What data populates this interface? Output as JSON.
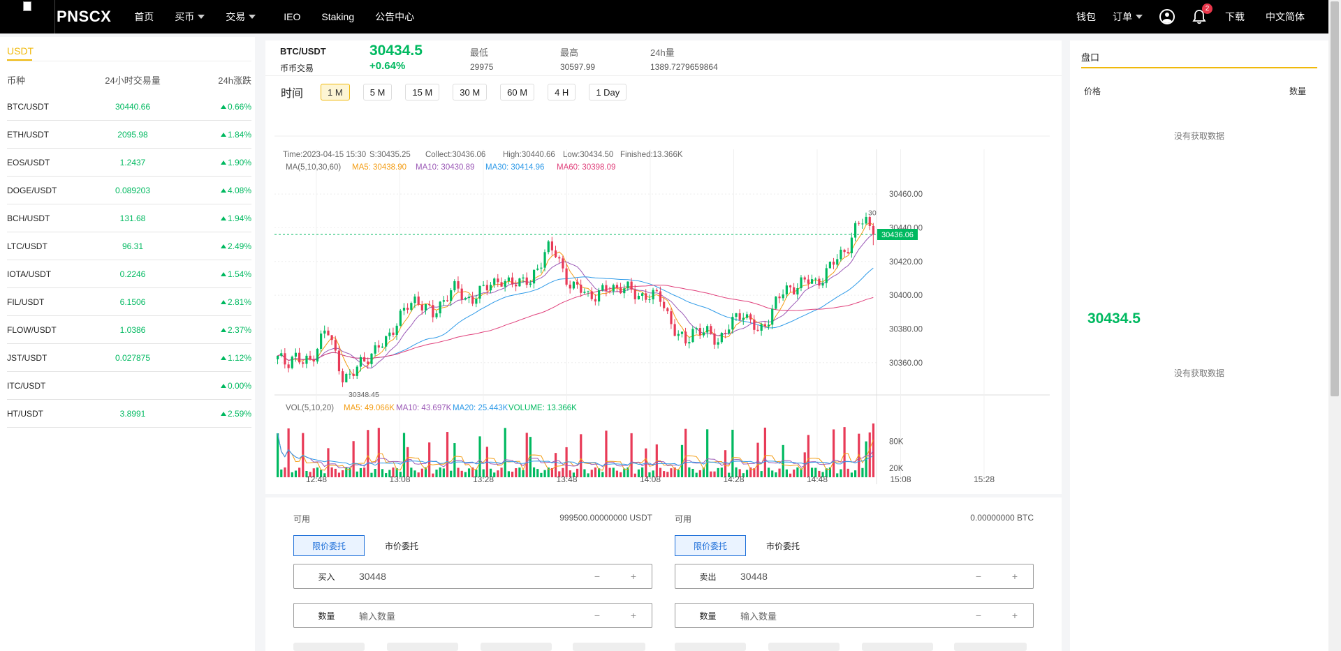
{
  "nav": {
    "brand": "PNSCX",
    "items": [
      {
        "label": "首页",
        "has_caret": false
      },
      {
        "label": "买币",
        "has_caret": true
      },
      {
        "label": "交易",
        "has_caret": true
      },
      {
        "label": "IEO",
        "has_caret": false
      },
      {
        "label": "Staking",
        "has_caret": false
      },
      {
        "label": "公告中心",
        "has_caret": false
      }
    ],
    "wallet": "钱包",
    "orders": "订单",
    "notification_count": "2",
    "download": "下载",
    "language": "中文简体"
  },
  "market": {
    "tab": "USDT",
    "headers": [
      "币种",
      "24小时交易量",
      "24h涨跌"
    ],
    "rows": [
      {
        "symbol": "BTC/USDT",
        "volume": "30440.66",
        "change": "0.66%"
      },
      {
        "symbol": "ETH/USDT",
        "volume": "2095.98",
        "change": "1.84%"
      },
      {
        "symbol": "EOS/USDT",
        "volume": "1.2437",
        "change": "1.90%"
      },
      {
        "symbol": "DOGE/USDT",
        "volume": "0.089203",
        "change": "4.08%"
      },
      {
        "symbol": "BCH/USDT",
        "volume": "131.68",
        "change": "1.94%"
      },
      {
        "symbol": "LTC/USDT",
        "volume": "96.31",
        "change": "2.49%"
      },
      {
        "symbol": "IOTA/USDT",
        "volume": "0.2246",
        "change": "1.54%"
      },
      {
        "symbol": "FIL/USDT",
        "volume": "6.1506",
        "change": "2.81%"
      },
      {
        "symbol": "FLOW/USDT",
        "volume": "1.0386",
        "change": "2.37%"
      },
      {
        "symbol": "JST/USDT",
        "volume": "0.027875",
        "change": "1.12%"
      },
      {
        "symbol": "ITC/USDT",
        "volume": "",
        "change": "0.00%"
      },
      {
        "symbol": "HT/USDT",
        "volume": "3.8991",
        "change": "2.59%"
      }
    ],
    "up_color": "#00b960"
  },
  "ticker": {
    "pair": "BTC/USDT",
    "sub": "币币交易",
    "price": "30434.5",
    "change": "+0.64%",
    "low_label": "最低",
    "low": "29975",
    "high_label": "最高",
    "high": "30597.99",
    "vol_label": "24h量",
    "vol": "1389.7279659864"
  },
  "periods": {
    "label": "时间",
    "options": [
      "1 M",
      "5 M",
      "15 M",
      "30 M",
      "60 M",
      "4 H",
      "1 Day"
    ],
    "active": "1 M"
  },
  "chart_info": {
    "time": "Time:2023-04-15 15:30",
    "open": "S:30435.25",
    "close": "Collect:30436.06",
    "high": "High:30440.66",
    "low": "Low:30434.50",
    "finished": "Finished:13.366K",
    "ma_label": "MA(5,10,30,60)",
    "ma5": "MA5: 30438.90",
    "ma10": "MA10: 30430.89",
    "ma30": "MA30: 30414.96",
    "ma60": "MA60: 30398.09",
    "vol_label": "VOL(5,10,20)",
    "vma5": "MA5: 49.066K",
    "vma10": "MA10: 43.697K",
    "vma20": "MA20: 25.443K",
    "volume": "VOLUME: 13.366K",
    "min_mark": "30348.45",
    "last_tag": "30436.06",
    "high_mark": "30"
  },
  "chart_data": {
    "type": "candlestick",
    "price_ticks": [
      "30460.00",
      "30440.00",
      "30420.00",
      "30400.00",
      "30380.00",
      "30360.00"
    ],
    "price_tick_values": [
      30460,
      30440,
      30420,
      30400,
      30380,
      30360
    ],
    "volume_ticks": [
      "80K",
      "20K"
    ],
    "volume_tick_values": [
      80000,
      20000
    ],
    "time_labels": [
      "12:48",
      "13:08",
      "13:28",
      "13:48",
      "14:08",
      "14:28",
      "14:48",
      "15:08",
      "15:28"
    ],
    "close_path": [
      30362,
      30360,
      30365,
      30359,
      30361,
      30372,
      30380,
      30366,
      30352,
      30350,
      30360,
      30364,
      30366,
      30372,
      30380,
      30386,
      30394,
      30399,
      30392,
      30388,
      30396,
      30401,
      30404,
      30399,
      30397,
      30402,
      30409,
      30408,
      30405,
      30410,
      30409,
      30406,
      30418,
      30430,
      30424,
      30414,
      30406,
      30403,
      30400,
      30401,
      30402,
      30404,
      30406,
      30403,
      30399,
      30401,
      30399,
      30398,
      30387,
      30375,
      30372,
      30381,
      30378,
      30376,
      30374,
      30379,
      30385,
      30391,
      30384,
      30376,
      30386,
      30396,
      30401,
      30405,
      30407,
      30408,
      30408,
      30412,
      30418,
      30425,
      30430,
      30440,
      30447,
      30436
    ],
    "last_price": 30436.06,
    "colors": {
      "up": "#00b960",
      "down": "#e83a57",
      "ma5": "#f39c12",
      "ma10": "#9b59b6",
      "ma30": "#2e9ae8",
      "ma60": "#e0407b"
    }
  },
  "trade": {
    "available_label": "可用",
    "buy_available": "999500.00000000 USDT",
    "sell_available": "0.00000000 BTC",
    "limit_tab": "限价委托",
    "market_tab": "市价委托",
    "buy_label": "买入",
    "sell_label": "卖出",
    "buy_price": "30448",
    "sell_price": "30448",
    "amount_label": "数量",
    "amount_placeholder": "输入数量",
    "minus": "−",
    "plus": "+"
  },
  "orderbook": {
    "tab": "盘口",
    "price_header": "价格",
    "qty_header": "数量",
    "no_data": "没有获取数据",
    "last_price": "30434.5"
  }
}
